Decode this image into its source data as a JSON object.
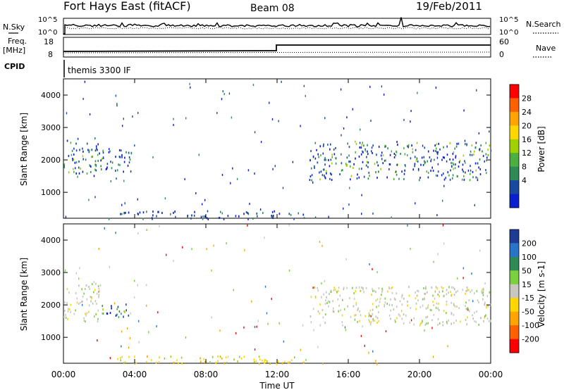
{
  "header": {
    "title": "Fort Hays East (fitACF)",
    "beam": "Beam 08",
    "date": "19/Feb/2011"
  },
  "meta_panel": {
    "left_top_label": "N.Sky",
    "left_top_ticks": [
      "10^5",
      "10^0"
    ],
    "right_top_label": "N.Search",
    "right_top_ticks": [
      "10^5",
      "10^0"
    ],
    "left_mid_label_1": "Freq.",
    "left_mid_label_2": "[MHz]",
    "left_mid_ticks": [
      "18",
      "8"
    ],
    "right_mid_label": "Nave",
    "right_mid_ticks": [
      "60",
      "0"
    ],
    "cpid_label": "CPID",
    "program_name": "themis 3300 IF"
  },
  "chart_data": [
    {
      "type": "heatmap",
      "name": "power-panel",
      "ylabel": "Slant Range [km]",
      "yticks": [
        "4000",
        "3000",
        "2000",
        "1000"
      ],
      "ylim": [
        200,
        4500
      ],
      "xlim": [
        0,
        24
      ],
      "colorbar": {
        "label": "Power [dB]",
        "ticks": [
          "28",
          "24",
          "20",
          "16",
          "12",
          "8",
          "4"
        ],
        "colors": [
          "#ff0000",
          "#ff6000",
          "#ffa500",
          "#ffd700",
          "#a0d000",
          "#4cb040",
          "#2e8b57",
          "#1a4aa0",
          "#0a20d0"
        ]
      },
      "regions": [
        {
          "t": [
            0.0,
            2.2
          ],
          "r": [
            1500,
            2700
          ],
          "color": "mix-blue-green"
        },
        {
          "t": [
            2.0,
            3.8
          ],
          "r": [
            1650,
            2400
          ],
          "color": "mix-blue"
        },
        {
          "t": [
            13.8,
            24.0
          ],
          "r": [
            1400,
            2600
          ],
          "color": "mix-blue-green"
        },
        {
          "t": [
            3.0,
            13.5
          ],
          "r": [
            200,
            450
          ],
          "color": "mix-blue"
        }
      ]
    },
    {
      "type": "heatmap",
      "name": "velocity-panel",
      "ylabel": "Slant Range [km]",
      "yticks": [
        "4000",
        "3000",
        "2000",
        "1000"
      ],
      "ylim": [
        200,
        4500
      ],
      "xlim": [
        0,
        24
      ],
      "xticks": [
        "00:00",
        "04:00",
        "08:00",
        "12:00",
        "16:00",
        "20:00",
        "00:00"
      ],
      "xlabel": "Time UT",
      "colorbar": {
        "label": "Velocity [m s-1]",
        "ticks": [
          "200",
          "100",
          "50",
          "15",
          "-15",
          "-50",
          "-100",
          "-200"
        ],
        "colors": [
          "#1e3c96",
          "#2874c8",
          "#2e8b57",
          "#7cd040",
          "#c8c8c0",
          "#ffd700",
          "#ffa500",
          "#ff6000",
          "#ff0000"
        ]
      },
      "regions": [
        {
          "t": [
            0.0,
            2.2
          ],
          "r": [
            1500,
            2700
          ],
          "color": "mix-grey"
        },
        {
          "t": [
            2.0,
            3.8
          ],
          "r": [
            1650,
            2100
          ],
          "color": "mix-blue-green"
        },
        {
          "t": [
            13.8,
            24.0
          ],
          "r": [
            1400,
            2600
          ],
          "color": "mix-grey"
        },
        {
          "t": [
            3.0,
            13.5
          ],
          "r": [
            200,
            450
          ],
          "color": "mix-yellow-orange"
        }
      ]
    }
  ]
}
